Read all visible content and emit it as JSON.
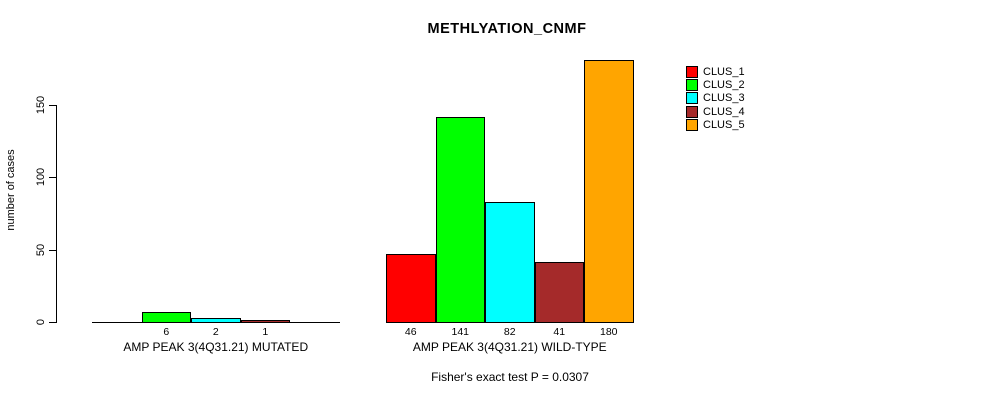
{
  "title": "METHLYATION_CNMF",
  "chart_data": {
    "type": "bar",
    "title": "METHLYATION_CNMF",
    "ylabel": "number of cases",
    "xlabel": "",
    "ylim": [
      0,
      185
    ],
    "yticks": [
      0,
      50,
      100,
      150
    ],
    "grid": false,
    "legend_position": "right",
    "bar_border_color": "#000000",
    "categories": [
      "AMP PEAK 3(4Q31.21) MUTATED",
      "AMP PEAK 3(4Q31.21) WILD-TYPE"
    ],
    "series": [
      {
        "name": "CLUS_1",
        "color": "#ff0000",
        "values": [
          0,
          46
        ]
      },
      {
        "name": "CLUS_2",
        "color": "#00ff00",
        "values": [
          6,
          141
        ]
      },
      {
        "name": "CLUS_3",
        "color": "#00ffff",
        "values": [
          2,
          82
        ]
      },
      {
        "name": "CLUS_4",
        "color": "#a52a2a",
        "values": [
          1,
          41
        ]
      },
      {
        "name": "CLUS_5",
        "color": "#ffa500",
        "values": [
          0,
          180
        ]
      }
    ],
    "value_labels_shown": true,
    "zero_value_labels_hidden": true,
    "annotation": "Fisher's exact test P = 0.0307"
  }
}
